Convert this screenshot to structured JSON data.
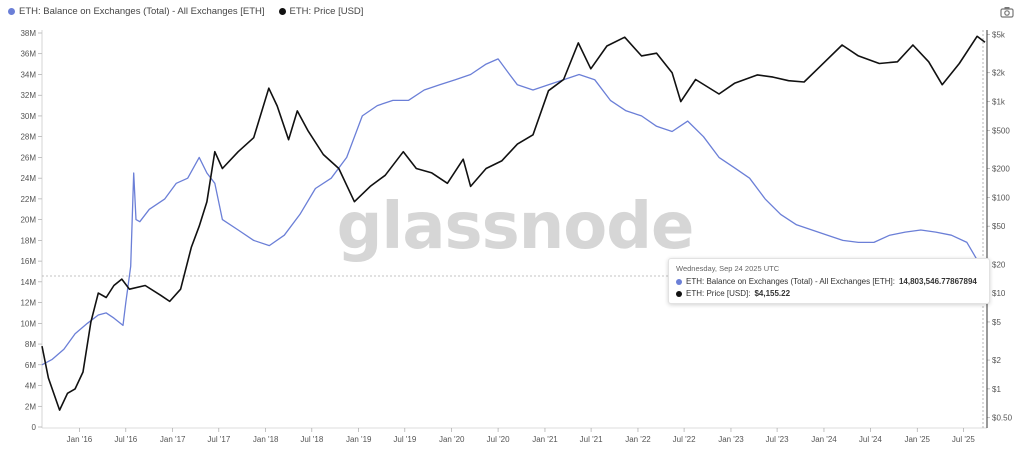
{
  "legend": {
    "series1_label": "ETH: Balance on Exchanges (Total) - All Exchanges [ETH]",
    "series2_label": "ETH: Price [USD]"
  },
  "watermark": "glassnode",
  "tooltip": {
    "date": "Wednesday, Sep 24 2025 UTC",
    "row1_label": "ETH: Balance on Exchanges (Total) - All Exchanges [ETH]:",
    "row1_value": "14,803,546.77867894",
    "row2_label": "ETH: Price [USD]:",
    "row2_value": "$4,155.22"
  },
  "icons": {
    "export": "camera-icon"
  },
  "colors": {
    "balance": "#6b7fd7",
    "price": "#111111"
  },
  "chart_data": {
    "type": "line",
    "left_axis": {
      "ticks": [
        "0",
        "2M",
        "4M",
        "6M",
        "8M",
        "10M",
        "12M",
        "14M",
        "16M",
        "18M",
        "20M",
        "22M",
        "24M",
        "26M",
        "28M",
        "30M",
        "32M",
        "34M",
        "36M",
        "38M"
      ],
      "range": [
        0,
        38000000
      ]
    },
    "right_axis": {
      "scale": "log",
      "ticks": [
        "$0.50",
        "$1",
        "$2",
        "$5",
        "$10",
        "$20",
        "$50",
        "$100",
        "$200",
        "$500",
        "$1k",
        "$2k",
        "$5k"
      ],
      "values": [
        0.5,
        1,
        2,
        5,
        10,
        20,
        50,
        100,
        200,
        500,
        1000,
        2000,
        5000
      ]
    },
    "x_ticks": [
      "Jan '16",
      "Jul '16",
      "Jan '17",
      "Jul '17",
      "Jan '18",
      "Jul '18",
      "Jan '19",
      "Jul '19",
      "Jan '20",
      "Jul '20",
      "Jan '21",
      "Jul '21",
      "Jan '22",
      "Jul '22",
      "Jan '23",
      "Jul '23",
      "Jan '24",
      "Jul '24",
      "Jan '25",
      "Jul '25"
    ],
    "x_range": [
      "2015-08-07",
      "2025-09-24"
    ],
    "series": [
      {
        "name": "ETH: Balance on Exchanges (Total) - All Exchanges [ETH]",
        "axis": "left",
        "x": [
          "2015-08-07",
          "2015-09-15",
          "2015-11-01",
          "2015-12-15",
          "2016-02-01",
          "2016-03-15",
          "2016-04-15",
          "2016-05-15",
          "2016-06-20",
          "2016-07-01",
          "2016-07-20",
          "2016-08-01",
          "2016-08-10",
          "2016-08-25",
          "2016-10-01",
          "2016-12-01",
          "2017-01-15",
          "2017-03-01",
          "2017-04-15",
          "2017-05-15",
          "2017-06-15",
          "2017-07-15",
          "2017-09-15",
          "2017-11-15",
          "2018-01-15",
          "2018-03-15",
          "2018-05-15",
          "2018-07-15",
          "2018-09-15",
          "2018-11-15",
          "2019-01-15",
          "2019-03-15",
          "2019-05-15",
          "2019-07-15",
          "2019-09-15",
          "2019-11-15",
          "2020-01-15",
          "2020-03-15",
          "2020-05-15",
          "2020-07-01",
          "2020-08-15",
          "2020-09-15",
          "2020-11-15",
          "2021-01-15",
          "2021-03-15",
          "2021-05-15",
          "2021-07-15",
          "2021-09-15",
          "2021-11-15",
          "2022-01-15",
          "2022-03-15",
          "2022-05-15",
          "2022-07-15",
          "2022-09-15",
          "2022-11-15",
          "2023-01-15",
          "2023-03-15",
          "2023-05-15",
          "2023-07-15",
          "2023-09-15",
          "2023-11-15",
          "2024-01-15",
          "2024-03-15",
          "2024-05-15",
          "2024-07-15",
          "2024-09-15",
          "2024-11-15",
          "2025-01-15",
          "2025-03-15",
          "2025-05-15",
          "2025-07-15",
          "2025-08-15",
          "2025-09-24"
        ],
        "values": [
          6000000,
          6500000,
          7500000,
          9000000,
          10000000,
          10800000,
          11000000,
          10500000,
          9800000,
          12000000,
          15500000,
          24500000,
          20000000,
          19800000,
          21000000,
          22000000,
          23500000,
          24000000,
          26000000,
          24500000,
          23500000,
          20000000,
          19000000,
          18000000,
          17500000,
          18500000,
          20500000,
          23000000,
          24000000,
          26000000,
          30000000,
          31000000,
          31500000,
          31500000,
          32500000,
          33000000,
          33500000,
          34000000,
          35000000,
          35500000,
          34000000,
          33000000,
          32500000,
          33000000,
          33500000,
          34000000,
          33500000,
          31500000,
          30500000,
          30000000,
          29000000,
          28500000,
          29500000,
          28000000,
          26000000,
          25000000,
          24000000,
          22000000,
          20500000,
          19500000,
          19000000,
          18500000,
          18000000,
          17800000,
          17800000,
          18500000,
          18800000,
          19000000,
          18800000,
          18500000,
          17800000,
          16500000,
          14803546.78
        ]
      },
      {
        "name": "ETH: Price [USD]",
        "axis": "right",
        "x": [
          "2015-08-07",
          "2015-09-01",
          "2015-10-15",
          "2015-11-15",
          "2015-12-15",
          "2016-01-15",
          "2016-02-15",
          "2016-03-15",
          "2016-04-15",
          "2016-05-15",
          "2016-06-15",
          "2016-07-15",
          "2016-09-15",
          "2016-11-15",
          "2016-12-20",
          "2017-02-01",
          "2017-03-15",
          "2017-04-15",
          "2017-05-15",
          "2017-06-15",
          "2017-07-15",
          "2017-09-15",
          "2017-11-15",
          "2018-01-13",
          "2018-02-15",
          "2018-04-01",
          "2018-05-05",
          "2018-06-15",
          "2018-08-15",
          "2018-10-15",
          "2018-12-15",
          "2019-02-15",
          "2019-04-15",
          "2019-06-25",
          "2019-08-15",
          "2019-10-15",
          "2019-12-15",
          "2020-02-15",
          "2020-03-15",
          "2020-05-15",
          "2020-07-15",
          "2020-09-15",
          "2020-11-15",
          "2021-01-15",
          "2021-03-15",
          "2021-05-12",
          "2021-06-30",
          "2021-09-01",
          "2021-11-10",
          "2022-01-15",
          "2022-03-15",
          "2022-05-15",
          "2022-06-18",
          "2022-08-15",
          "2022-11-15",
          "2023-01-15",
          "2023-04-15",
          "2023-06-15",
          "2023-08-15",
          "2023-10-15",
          "2023-12-15",
          "2024-03-12",
          "2024-05-15",
          "2024-08-05",
          "2024-10-15",
          "2024-12-15",
          "2025-02-15",
          "2025-04-09",
          "2025-06-15",
          "2025-08-24",
          "2025-09-24"
        ],
        "values": [
          2.8,
          1.3,
          0.6,
          0.9,
          1.0,
          1.5,
          5,
          10,
          9,
          12,
          14,
          11,
          12,
          9.5,
          8.2,
          11,
          30,
          50,
          90,
          300,
          200,
          300,
          420,
          1380,
          900,
          400,
          800,
          500,
          280,
          200,
          90,
          130,
          170,
          300,
          200,
          180,
          140,
          250,
          130,
          200,
          240,
          360,
          450,
          1300,
          1700,
          4100,
          2200,
          3800,
          4700,
          3000,
          3200,
          2000,
          1000,
          1700,
          1200,
          1550,
          1900,
          1800,
          1650,
          1600,
          2300,
          3900,
          3000,
          2500,
          2600,
          3900,
          2600,
          1500,
          2500,
          4800,
          4155.22
        ]
      }
    ]
  }
}
